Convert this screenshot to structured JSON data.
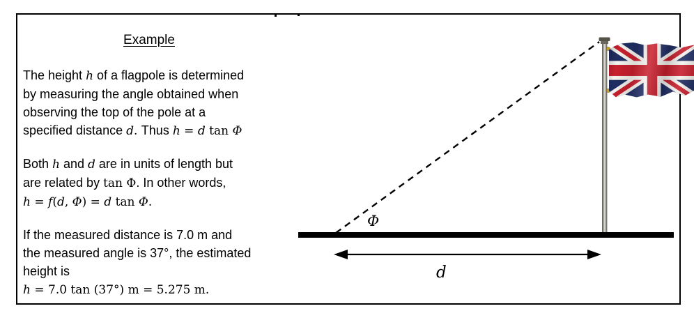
{
  "panel": {
    "title": "Example",
    "paragraphs": [
      {
        "lines": [
          [
            [
              "t",
              "The height "
            ],
            [
              "m",
              "h"
            ],
            [
              "t",
              " of a flagpole is determined"
            ]
          ],
          [
            [
              "t",
              "by measuring the angle obtained when"
            ]
          ],
          [
            [
              "t",
              "observing the top of the pole at a"
            ]
          ],
          [
            [
              "t",
              "specified distance "
            ],
            [
              "m",
              "d"
            ],
            [
              "r",
              ". "
            ],
            [
              "t",
              "Thus "
            ],
            [
              "m",
              "h"
            ],
            [
              "r",
              " = "
            ],
            [
              "m",
              "d"
            ],
            [
              "r",
              "  tan "
            ],
            [
              "m",
              "Φ"
            ]
          ]
        ]
      },
      {
        "lines": [
          [
            [
              "t",
              "Both "
            ],
            [
              "m",
              "h"
            ],
            [
              "t",
              " and "
            ],
            [
              "m",
              "d"
            ],
            [
              "t",
              " are in units of length but"
            ]
          ],
          [
            [
              "t",
              "are related by "
            ],
            [
              "r",
              "tan Φ"
            ],
            [
              "t",
              ". In other words,"
            ]
          ],
          [
            [
              "m",
              "h"
            ],
            [
              "r",
              " = "
            ],
            [
              "m",
              "f"
            ],
            [
              "r",
              "("
            ],
            [
              "m",
              "d"
            ],
            [
              "r",
              ", "
            ],
            [
              "m",
              "Φ"
            ],
            [
              "r",
              ") = "
            ],
            [
              "m",
              "d"
            ],
            [
              "r",
              "  tan "
            ],
            [
              "m",
              "Φ"
            ],
            [
              "r",
              "."
            ]
          ]
        ]
      },
      {
        "lines": [
          [
            [
              "t",
              "If the measured distance is 7.0 m and"
            ]
          ],
          [
            [
              "t",
              "the measured angle is 37°, the estimated"
            ]
          ],
          [
            [
              "t",
              "height is"
            ]
          ],
          [
            [
              "m",
              "h"
            ],
            [
              "r",
              " = 7.0 tan (37°) m = 5.275 m."
            ]
          ]
        ]
      }
    ]
  },
  "diagram": {
    "angle_label": "Φ",
    "distance_label": "d",
    "flag_name": "union-jack-flag",
    "colors": {
      "flag_blue": "#1f2d63",
      "flag_red": "#c8202e",
      "flag_white": "#f4f2ee",
      "pole_dark": "#5a5a52",
      "pole_light": "#dcdcd4",
      "gold_ring": "#c9a227",
      "line_black": "#000000"
    }
  }
}
